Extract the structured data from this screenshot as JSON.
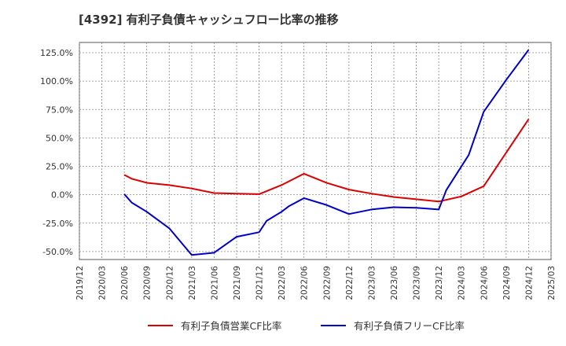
{
  "chart_data": {
    "type": "line",
    "title": "[4392]  有利子負債キャッシュフロー比率の推移",
    "xlabel": "",
    "ylabel": "",
    "x_ticks": [
      "2019/12",
      "2020/03",
      "2020/06",
      "2020/09",
      "2020/12",
      "2021/03",
      "2021/06",
      "2021/09",
      "2021/12",
      "2022/03",
      "2022/06",
      "2022/09",
      "2022/12",
      "2023/03",
      "2023/06",
      "2023/09",
      "2023/12",
      "2024/03",
      "2024/06",
      "2024/09",
      "2024/12",
      "2025/03"
    ],
    "y_ticks": [
      "-50.0%",
      "-25.0%",
      "0.0%",
      "25.0%",
      "50.0%",
      "75.0%",
      "100.0%",
      "125.0%"
    ],
    "ylim": [
      -57,
      134
    ],
    "grid": true,
    "legend_position": "bottom",
    "series": [
      {
        "name": "有利子負債営業CF比率",
        "color": "#dd0000",
        "points": [
          [
            "2020/06",
            17.5
          ],
          [
            "2020/07",
            14.0
          ],
          [
            "2020/09",
            10.5
          ],
          [
            "2020/12",
            8.5
          ],
          [
            "2021/03",
            5.5
          ],
          [
            "2021/06",
            1.5
          ],
          [
            "2021/09",
            1.0
          ],
          [
            "2021/12",
            0.5
          ],
          [
            "2022/03",
            8.5
          ],
          [
            "2022/06",
            18.5
          ],
          [
            "2022/09",
            10.5
          ],
          [
            "2022/12",
            4.5
          ],
          [
            "2023/03",
            1.0
          ],
          [
            "2023/06",
            -2.0
          ],
          [
            "2023/09",
            -4.0
          ],
          [
            "2023/12",
            -6.0
          ],
          [
            "2024/03",
            -1.5
          ],
          [
            "2024/06",
            7.5
          ],
          [
            "2024/09",
            37.0
          ],
          [
            "2024/12",
            66.5
          ]
        ]
      },
      {
        "name": "有利子負債フリーCF比率",
        "color": "#0000cc",
        "points": [
          [
            "2020/06",
            0.5
          ],
          [
            "2020/07",
            -7.0
          ],
          [
            "2020/09",
            -15.0
          ],
          [
            "2020/12",
            -29.5
          ],
          [
            "2021/03",
            -53.0
          ],
          [
            "2021/06",
            -51.0
          ],
          [
            "2021/09",
            -37.0
          ],
          [
            "2021/12",
            -33.0
          ],
          [
            "2022/01",
            -23.0
          ],
          [
            "2022/03",
            -15.0
          ],
          [
            "2022/04",
            -10.0
          ],
          [
            "2022/06",
            -3.0
          ],
          [
            "2022/09",
            -9.0
          ],
          [
            "2022/12",
            -17.0
          ],
          [
            "2023/03",
            -13.0
          ],
          [
            "2023/06",
            -11.0
          ],
          [
            "2023/09",
            -11.5
          ],
          [
            "2023/12",
            -13.0
          ],
          [
            "2024/01",
            4.0
          ],
          [
            "2024/04",
            35.0
          ],
          [
            "2024/06",
            73.0
          ],
          [
            "2024/09",
            101.0
          ],
          [
            "2024/12",
            127.5
          ]
        ]
      }
    ]
  }
}
